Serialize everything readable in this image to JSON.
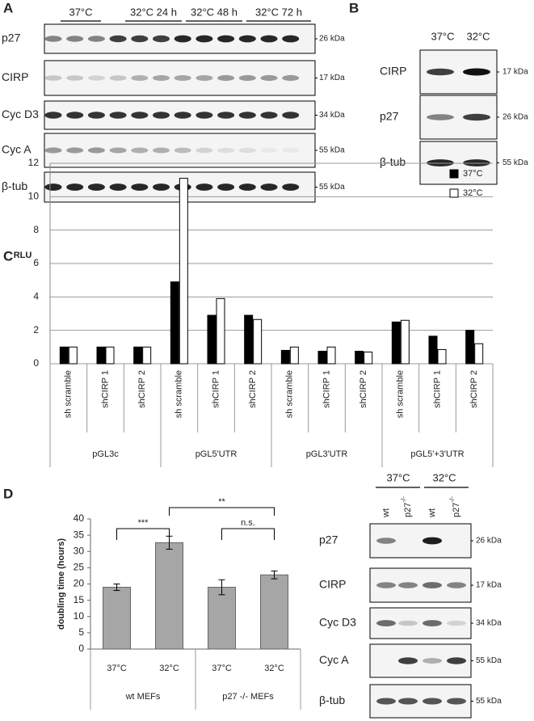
{
  "blots": [
    {
      "panel": "A",
      "headers": [
        "37°C",
        "32°C 24 h",
        "32°C 48 h",
        "32°C 72 h"
      ],
      "rows": [
        {
          "label": "p27",
          "kda": "26 kDa"
        },
        {
          "label": "CIRP",
          "kda": "17 kDa"
        },
        {
          "label": "Cyc D3",
          "kda": "34 kDa"
        },
        {
          "label": "Cyc A",
          "kda": "55 kDa"
        },
        {
          "label": "β-tub",
          "kda": "55 kDa"
        }
      ]
    },
    {
      "panel": "B",
      "headers": [
        "37°C",
        "32°C"
      ],
      "rows": [
        {
          "label": "CIRP",
          "kda": "17 kDa"
        },
        {
          "label": "p27",
          "kda": "26 kDa"
        },
        {
          "label": "β-tub",
          "kda": "55 kDa"
        }
      ]
    },
    {
      "headers": [
        "37°C",
        "32°C"
      ],
      "lanes": [
        {
          "text": "wt"
        },
        {
          "text": "p27",
          "sup": "-/-"
        },
        {
          "text": "wt"
        },
        {
          "text": "p27",
          "sup": "-/-"
        }
      ],
      "rows": [
        {
          "label": "p27",
          "kda": "26 kDa"
        },
        {
          "label": "CIRP",
          "kda": "17 kDa"
        },
        {
          "label": "Cyc D3",
          "kda": "34 kDa"
        },
        {
          "label": "Cyc A",
          "kda": "55 kDa"
        },
        {
          "label": "β-tub",
          "kda": "55 kDa"
        }
      ]
    }
  ],
  "chart_data": [
    {
      "type": "bar",
      "panel": "C",
      "y_label": "RLU",
      "categories": [
        "sh scramble",
        "shCIRP 1",
        "shCIRP 2",
        "sh scramble",
        "shCIRP 1",
        "shCIRP 2",
        "sh scramble",
        "shCIRP 1",
        "shCIRP 2",
        "sh scramble",
        "shCIRP 1",
        "shCIRP 2"
      ],
      "category_groups": [
        "pGL3c",
        "pGL5'UTR",
        "pGL3'UTR",
        "pGL5'+3'UTR"
      ],
      "series": [
        {
          "name": "37°C",
          "color": "#000000",
          "values": [
            1,
            1,
            1,
            4.9,
            2.9,
            2.9,
            0.8,
            0.75,
            0.75,
            2.5,
            1.65,
            2.0
          ]
        },
        {
          "name": "32°C",
          "color": "#ffffff",
          "values": [
            1,
            1,
            1,
            11.1,
            3.9,
            2.65,
            1.0,
            1.0,
            0.7,
            2.6,
            0.85,
            1.2
          ]
        }
      ],
      "ylim": [
        0,
        12
      ],
      "yticks": [
        0,
        2,
        4,
        6,
        8,
        10,
        12
      ],
      "grid": true,
      "legend": "top-right"
    },
    {
      "type": "errorbar",
      "panel": "D",
      "y_label": "doubling time (hours)",
      "categories": [
        "37°C",
        "32°C",
        "37°C",
        "32°C"
      ],
      "category_groups": [
        "wt MEFs",
        "p27 -/- MEFs"
      ],
      "series": [
        {
          "name": "doubling time",
          "color": "#a6a6a6",
          "values": [
            19,
            32.7,
            19,
            22.8
          ],
          "errors": [
            1,
            2,
            2.3,
            1.2
          ]
        }
      ],
      "annotations": [
        "***",
        "n.s.",
        "**"
      ],
      "ylim": [
        0,
        40
      ],
      "yticks": [
        0,
        5,
        10,
        15,
        20,
        25,
        30,
        35,
        40
      ],
      "grid": false
    }
  ]
}
